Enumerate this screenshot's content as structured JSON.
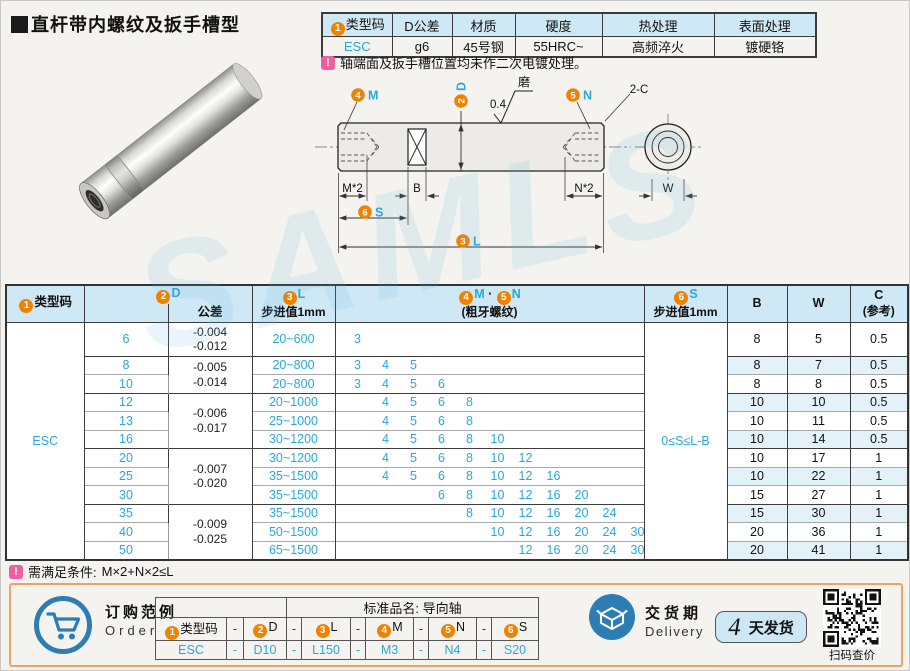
{
  "page": {
    "title": "直杆带内螺纹及扳手槽型",
    "watermark": "SAMLS"
  },
  "spec_table": {
    "header_badge": "1",
    "headers": [
      "类型码",
      "D公差",
      "材质",
      "硬度",
      "热处理",
      "表面处理"
    ],
    "values": [
      "ESC",
      "g6",
      "45号钢",
      "55HRC~",
      "高频淬火",
      "镀硬铬"
    ]
  },
  "notes": {
    "plating": "轴端面及扳手槽位置均未作二次电镀处理。",
    "condition_label": "需满足条件:",
    "condition_formula": "M×2+N×2≤L"
  },
  "drawing": {
    "labels": {
      "m_badge": "4",
      "m": "M",
      "d_badge": "2",
      "d": "D",
      "n_badge": "5",
      "n": "N",
      "grind_value": "0.4",
      "grind": "磨",
      "chamfer": "2-C",
      "dim_m": "M*2",
      "dim_b": "B",
      "dim_n": "N*2",
      "dim_w": "W",
      "s_badge": "6",
      "s": "S",
      "l_badge": "3",
      "l": "L"
    }
  },
  "main_table": {
    "header": {
      "type_badge": "1",
      "type": "类型码",
      "d_badge": "2",
      "d": "D",
      "tolerance": "公差",
      "l_badge": "3",
      "l": "L",
      "l_step": "步进值1mm",
      "m_badge": "4",
      "m": "M",
      "dot": "·",
      "n_badge": "5",
      "n": "N",
      "mn_sub": "(粗牙螺纹)",
      "s_badge": "6",
      "s": "S",
      "s_step": "步进值1mm",
      "b": "B",
      "w": "W",
      "c": "C",
      "c_sub": "(参考)"
    },
    "type_code": "ESC",
    "s_condition": "0≤S≤L-B",
    "mn_slots": [
      "3",
      "4",
      "5",
      "6",
      "8",
      "10",
      "12",
      "16",
      "20",
      "24",
      "30"
    ],
    "tolerance_groups": [
      {
        "rows": 1,
        "lines": [
          "-0.004",
          "-0.012"
        ]
      },
      {
        "rows": 2,
        "lines": [
          "-0.005",
          "-0.014"
        ]
      },
      {
        "rows": 3,
        "lines": [
          "-0.006",
          "-0.017"
        ]
      },
      {
        "rows": 3,
        "lines": [
          "-0.007",
          "-0.020"
        ]
      },
      {
        "rows": 3,
        "lines": [
          "-0.009",
          "-0.025"
        ]
      }
    ],
    "rows": [
      {
        "d": "6",
        "l_range": "20~600",
        "mn": [
          "3"
        ],
        "b": "8",
        "w": "5",
        "c": "0.5"
      },
      {
        "d": "8",
        "l_range": "20~800",
        "mn": [
          "3",
          "4",
          "5"
        ],
        "b": "8",
        "w": "7",
        "c": "0.5"
      },
      {
        "d": "10",
        "l_range": "20~800",
        "mn": [
          "3",
          "4",
          "5",
          "6"
        ],
        "b": "8",
        "w": "8",
        "c": "0.5"
      },
      {
        "d": "12",
        "l_range": "20~1000",
        "mn": [
          "4",
          "5",
          "6",
          "8"
        ],
        "b": "10",
        "w": "10",
        "c": "0.5"
      },
      {
        "d": "13",
        "l_range": "25~1000",
        "mn": [
          "4",
          "5",
          "6",
          "8"
        ],
        "b": "10",
        "w": "11",
        "c": "0.5"
      },
      {
        "d": "16",
        "l_range": "30~1200",
        "mn": [
          "4",
          "5",
          "6",
          "8",
          "10"
        ],
        "b": "10",
        "w": "14",
        "c": "0.5"
      },
      {
        "d": "20",
        "l_range": "30~1200",
        "mn": [
          "4",
          "5",
          "6",
          "8",
          "10",
          "12"
        ],
        "b": "10",
        "w": "17",
        "c": "1"
      },
      {
        "d": "25",
        "l_range": "35~1500",
        "mn": [
          "4",
          "5",
          "6",
          "8",
          "10",
          "12",
          "16"
        ],
        "b": "10",
        "w": "22",
        "c": "1"
      },
      {
        "d": "30",
        "l_range": "35~1500",
        "mn": [
          "6",
          "8",
          "10",
          "12",
          "16",
          "20"
        ],
        "b": "15",
        "w": "27",
        "c": "1"
      },
      {
        "d": "35",
        "l_range": "35~1500",
        "mn": [
          "8",
          "10",
          "12",
          "16",
          "20",
          "24"
        ],
        "b": "15",
        "w": "30",
        "c": "1"
      },
      {
        "d": "40",
        "l_range": "50~1500",
        "mn": [
          "10",
          "12",
          "16",
          "20",
          "24",
          "30"
        ],
        "b": "20",
        "w": "36",
        "c": "1"
      },
      {
        "d": "50",
        "l_range": "65~1500",
        "mn": [
          "12",
          "16",
          "20",
          "24",
          "30"
        ],
        "b": "20",
        "w": "41",
        "c": "1"
      }
    ]
  },
  "order": {
    "example_label": "订购范例",
    "example_label_en": "Order",
    "product_name": "标准品名: 导向轴",
    "separator": "-",
    "labels": [
      {
        "badge": "1",
        "text": "类型码"
      },
      {
        "badge": "2",
        "text": "D"
      },
      {
        "badge": "3",
        "text": "L"
      },
      {
        "badge": "4",
        "text": "M"
      },
      {
        "badge": "5",
        "text": "N"
      },
      {
        "badge": "6",
        "text": "S"
      }
    ],
    "values": [
      "ESC",
      "D10",
      "L150",
      "M3",
      "N4",
      "S20"
    ]
  },
  "delivery": {
    "label": "交货期",
    "label_en": "Delivery",
    "days": "4",
    "days_suffix": "天发货",
    "qr_caption": "扫码查价"
  }
}
